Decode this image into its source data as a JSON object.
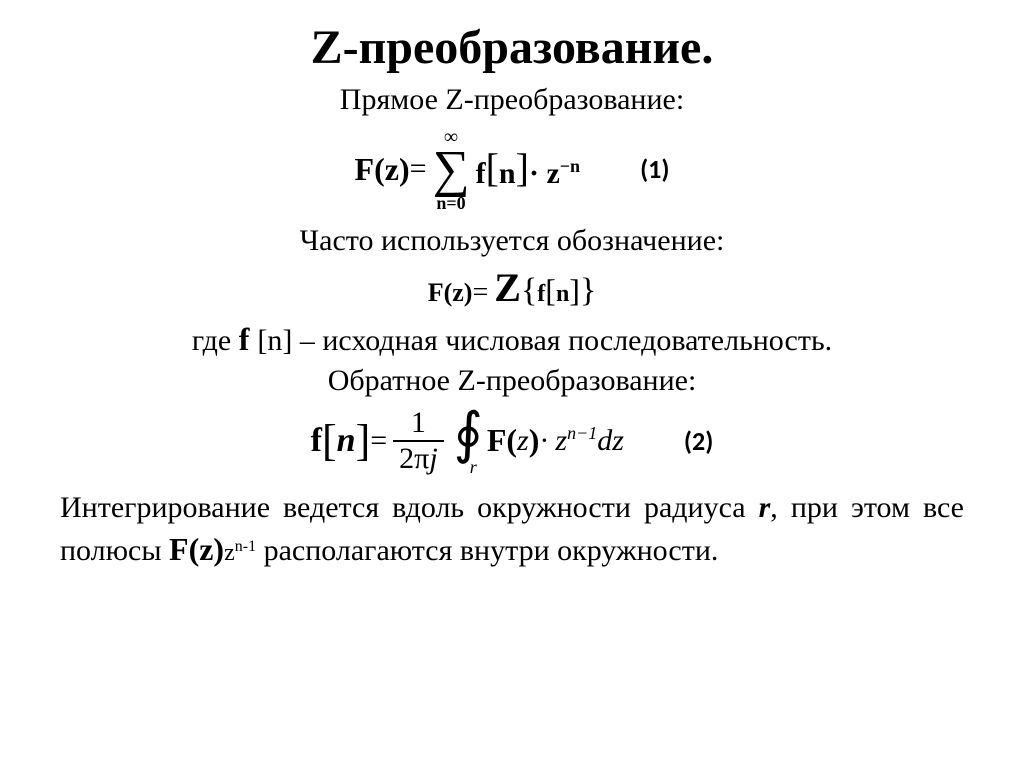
{
  "colors": {
    "background": "#ffffff",
    "text": "#000000"
  },
  "fonts": {
    "body": "Times New Roman",
    "label": "Calibri",
    "title_size_pt": 36,
    "body_size_pt": 22
  },
  "title": "Z-преобразование.",
  "subtitle1": "Прямое Z-преобразование:",
  "eq1": {
    "lhs": "F(z)",
    "equals": " = ",
    "sum_top": "∞",
    "sum_bottom": "n=0",
    "f": "f",
    "n": "n",
    "dot": "·",
    "z": " z",
    "exp": "−n",
    "label": "(1)"
  },
  "subtitle2": "Часто используется обозначение:",
  "eq2": {
    "lhs": "F(z)",
    "equals": " = ",
    "Z": "Z",
    "lbrace": "{",
    "f": "f",
    "n": "n",
    "rbrace": "}"
  },
  "where": {
    "prefix": "где ",
    "f": "f ",
    "bracket_n": "[n]",
    "suffix": " – исходная числовая последовательность."
  },
  "subtitle3": "Обратное Z-преобразование:",
  "eq3": {
    "f": "f",
    "n": "n",
    "equals": "=",
    "num": "1",
    "den_2": "2",
    "den_pi": "π",
    "den_j": "j",
    "oint_sub": "r",
    "F": "F(",
    "z_arg": " z",
    "close": ")",
    "dot": "·",
    "z_base": " z",
    "z_exp": "n−1",
    "dz": "dz",
    "label": "(2)"
  },
  "paragraph": {
    "p1": "Интегрирование ведется вдоль окружности радиуса ",
    "r": "r",
    "p2": ", при этом все полюсы ",
    "Fz": "F(z)",
    "z": "z",
    "exp": "n-1",
    "p3": " располагаются внутри окружности."
  }
}
